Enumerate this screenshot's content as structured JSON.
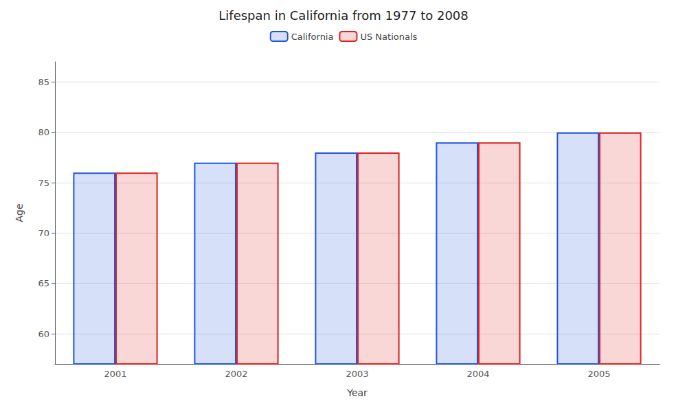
{
  "chart_data": {
    "type": "bar",
    "title": "Lifespan in California from 1977 to 2008",
    "xlabel": "Year",
    "ylabel": "Age",
    "categories": [
      "2001",
      "2002",
      "2003",
      "2004",
      "2005"
    ],
    "series": [
      {
        "name": "California",
        "color": "#2255dd",
        "values": [
          76,
          77,
          78,
          79,
          80
        ]
      },
      {
        "name": "US Nationals",
        "color": "#dd2222",
        "values": [
          76,
          77,
          78,
          79,
          80
        ]
      }
    ],
    "ylim": [
      57,
      87
    ],
    "yticks": [
      60,
      65,
      70,
      75,
      80,
      85
    ],
    "grid": true,
    "legend": "upper center"
  }
}
